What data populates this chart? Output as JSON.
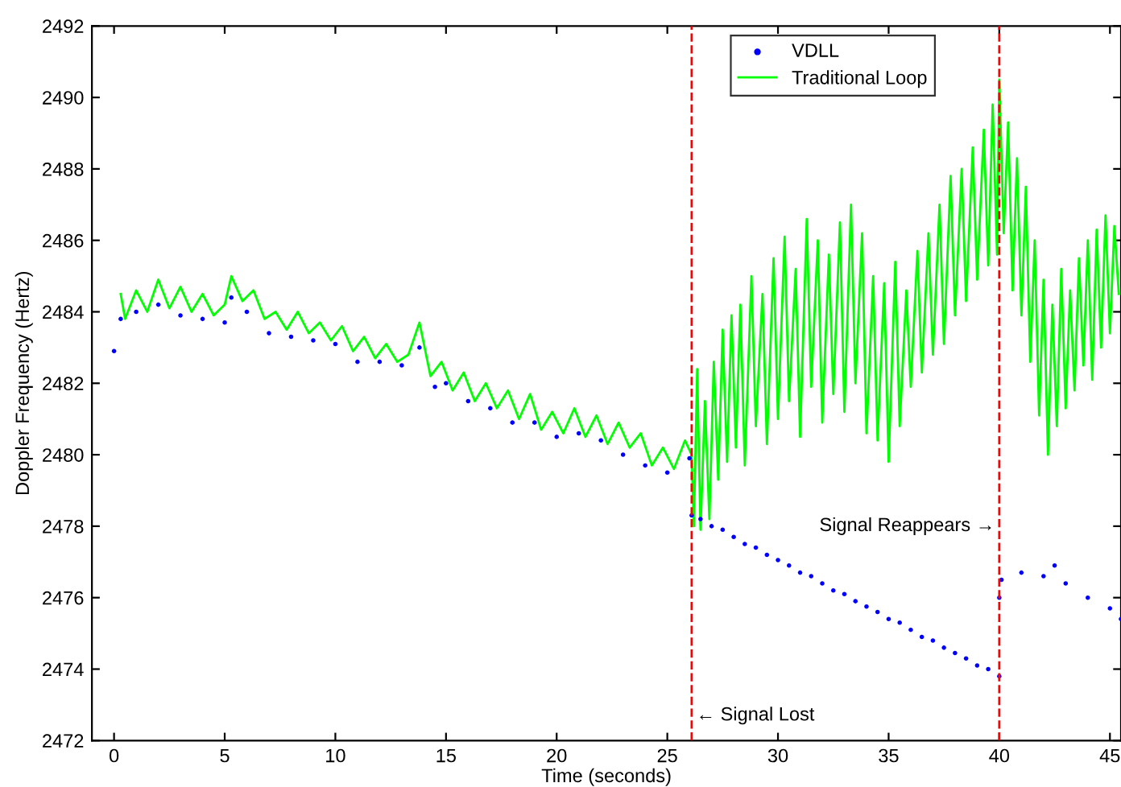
{
  "chart_data": {
    "type": "line",
    "xlabel": "Time (seconds)",
    "ylabel": "Doppler Frequency (Hertz)",
    "xlim": [
      -1,
      45.5
    ],
    "ylim": [
      2472,
      2492
    ],
    "xticks": [
      0,
      5,
      10,
      15,
      20,
      25,
      30,
      35,
      40,
      45
    ],
    "yticks": [
      2472,
      2474,
      2476,
      2478,
      2480,
      2482,
      2484,
      2486,
      2488,
      2490,
      2492
    ],
    "grid": false,
    "legend": "top",
    "series": [
      {
        "name": "VDLL",
        "type": "scatter",
        "marker": "circle",
        "color": "#0000ff",
        "x": [
          0,
          0.3,
          1,
          2,
          3,
          4,
          5,
          5.3,
          6,
          7,
          8,
          9,
          10,
          11,
          12,
          13,
          13.8,
          14.5,
          15,
          16,
          17,
          18,
          19,
          20,
          21,
          22,
          23,
          24,
          25,
          26,
          26.1,
          26.5,
          27,
          27.5,
          28,
          28.5,
          29,
          29.5,
          30,
          30.5,
          31,
          31.5,
          32,
          32.5,
          33,
          33.5,
          34,
          34.5,
          35,
          35.5,
          36,
          36.5,
          37,
          37.5,
          38,
          38.5,
          39,
          39.5,
          40,
          40,
          40.1,
          41,
          42,
          42.5,
          43,
          44,
          45,
          45.5
        ],
        "values": [
          2482.9,
          2483.8,
          2484.0,
          2484.2,
          2483.9,
          2483.8,
          2483.7,
          2484.4,
          2484.0,
          2483.4,
          2483.3,
          2483.2,
          2483.1,
          2482.6,
          2482.6,
          2482.5,
          2483.0,
          2481.9,
          2482.0,
          2481.5,
          2481.3,
          2480.9,
          2480.9,
          2480.5,
          2480.6,
          2480.4,
          2480.0,
          2479.7,
          2479.5,
          2479.9,
          2478.3,
          2478.2,
          2478.0,
          2477.9,
          2477.7,
          2477.5,
          2477.4,
          2477.2,
          2477.05,
          2476.9,
          2476.7,
          2476.6,
          2476.4,
          2476.2,
          2476.1,
          2475.9,
          2475.75,
          2475.6,
          2475.4,
          2475.3,
          2475.1,
          2474.9,
          2474.8,
          2474.6,
          2474.45,
          2474.3,
          2474.1,
          2474.0,
          2473.8,
          2476.0,
          2476.5,
          2476.7,
          2476.6,
          2476.9,
          2476.4,
          2476.0,
          2475.7,
          2475.4
        ]
      },
      {
        "name": "Traditional Loop",
        "color": "#00ff00",
        "x": [
          0.3,
          0.5,
          1,
          1.5,
          2,
          2.5,
          3,
          3.5,
          4,
          4.5,
          5,
          5.3,
          5.8,
          6.3,
          6.8,
          7.3,
          7.8,
          8.3,
          8.8,
          9.3,
          9.8,
          10.3,
          10.8,
          11.3,
          11.8,
          12.3,
          12.8,
          13.3,
          13.8,
          14.3,
          14.8,
          15.3,
          15.8,
          16.3,
          16.8,
          17.3,
          17.8,
          18.3,
          18.8,
          19.3,
          19.8,
          20.3,
          20.8,
          21.3,
          21.8,
          22.3,
          22.8,
          23.3,
          23.8,
          24.3,
          24.8,
          25.3,
          25.8,
          26.1,
          26.2,
          26.35,
          26.5,
          26.7,
          26.9,
          27.1,
          27.3,
          27.5,
          27.7,
          27.9,
          28.1,
          28.3,
          28.5,
          28.8,
          29.0,
          29.3,
          29.5,
          29.8,
          30.0,
          30.3,
          30.5,
          30.8,
          31.0,
          31.3,
          31.5,
          31.8,
          32.0,
          32.3,
          32.5,
          32.8,
          33.0,
          33.3,
          33.5,
          33.8,
          34.0,
          34.3,
          34.5,
          34.8,
          35.0,
          35.3,
          35.5,
          35.8,
          36.0,
          36.3,
          36.5,
          36.8,
          37.0,
          37.3,
          37.5,
          37.8,
          38.0,
          38.3,
          38.5,
          38.8,
          39.0,
          39.3,
          39.5,
          39.7,
          39.9,
          40.0,
          40.2,
          40.4,
          40.6,
          40.8,
          41.0,
          41.2,
          41.4,
          41.6,
          41.8,
          42.0,
          42.2,
          42.4,
          42.6,
          42.8,
          43.0,
          43.2,
          43.4,
          43.6,
          43.8,
          44.0,
          44.2,
          44.4,
          44.6,
          44.8,
          45.0,
          45.2,
          45.4
        ],
        "values": [
          2484.5,
          2483.8,
          2484.6,
          2484.0,
          2484.9,
          2484.1,
          2484.7,
          2484.0,
          2484.5,
          2483.9,
          2484.2,
          2485.0,
          2484.3,
          2484.6,
          2483.8,
          2484.0,
          2483.5,
          2484.0,
          2483.4,
          2483.7,
          2483.2,
          2483.6,
          2482.9,
          2483.3,
          2482.7,
          2483.1,
          2482.6,
          2482.8,
          2483.7,
          2482.2,
          2482.6,
          2481.8,
          2482.3,
          2481.5,
          2482.0,
          2481.3,
          2481.8,
          2481.0,
          2481.7,
          2480.7,
          2481.2,
          2480.6,
          2481.3,
          2480.5,
          2481.1,
          2480.3,
          2480.9,
          2480.2,
          2480.6,
          2479.7,
          2480.2,
          2479.6,
          2480.4,
          2480.0,
          2478.0,
          2482.4,
          2477.9,
          2481.5,
          2478.2,
          2482.6,
          2479.3,
          2483.5,
          2479.8,
          2483.9,
          2480.2,
          2484.2,
          2479.7,
          2485.0,
          2480.8,
          2484.5,
          2480.3,
          2485.5,
          2481.0,
          2486.1,
          2481.5,
          2485.2,
          2480.5,
          2486.6,
          2481.9,
          2486.0,
          2480.9,
          2485.6,
          2481.7,
          2486.5,
          2481.2,
          2487.0,
          2482.0,
          2486.2,
          2480.6,
          2485.0,
          2480.4,
          2484.8,
          2479.8,
          2485.4,
          2480.8,
          2484.6,
          2481.9,
          2485.7,
          2482.3,
          2486.2,
          2482.8,
          2487.0,
          2483.1,
          2487.8,
          2483.9,
          2488.0,
          2484.3,
          2488.6,
          2484.9,
          2489.1,
          2485.3,
          2489.8,
          2485.6,
          2490.5,
          2486.2,
          2489.3,
          2484.6,
          2488.3,
          2483.9,
          2487.5,
          2482.6,
          2486.0,
          2481.1,
          2484.9,
          2480.0,
          2484.2,
          2480.8,
          2485.2,
          2481.3,
          2484.6,
          2481.8,
          2485.5,
          2482.5,
          2486.0,
          2482.1,
          2486.3,
          2483.0,
          2486.7,
          2483.4,
          2486.4,
          2484.5
        ]
      }
    ],
    "ref_lines": [
      {
        "axis": "x",
        "value": 26.1,
        "color": "#ff0000",
        "line_style": "dashed"
      },
      {
        "axis": "x",
        "value": 40,
        "color": "#ff0000",
        "line_style": "dashed"
      }
    ],
    "annotations": [
      {
        "text": "← Signal Lost",
        "x": 26.1,
        "y": 2472.7
      },
      {
        "text": "Signal Reappears →",
        "x": 40,
        "y": 2478
      }
    ]
  }
}
